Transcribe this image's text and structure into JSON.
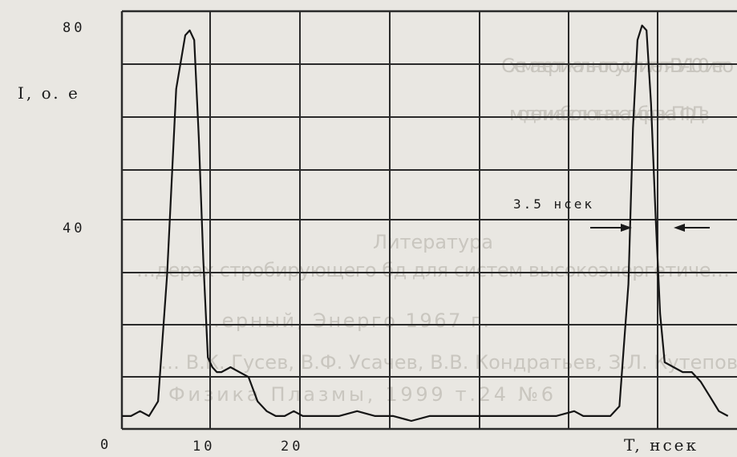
{
  "chart_data": {
    "type": "line",
    "ylabel": "I, o. e",
    "xlabel": "T, нсек",
    "x_ticks": [
      "0",
      "10",
      "20"
    ],
    "y_ticks": [
      "80",
      "40"
    ],
    "xlim": [
      0,
      68
    ],
    "ylim": [
      0,
      80
    ],
    "grid": true,
    "annotation": "3.5 нсек",
    "series": [
      {
        "x": [
          0,
          1,
          2,
          3,
          4,
          5,
          6,
          7,
          7.5,
          8,
          8.5,
          9,
          9.5,
          10,
          10.5,
          11,
          12,
          13,
          14,
          15,
          16,
          17,
          18,
          19,
          20,
          22,
          24,
          26,
          28,
          30,
          32,
          34,
          36,
          38,
          40,
          42,
          44,
          46,
          48,
          50,
          51,
          52,
          53,
          54,
          55,
          56,
          56.5,
          57,
          57.5,
          58,
          58.5,
          59,
          59.5,
          60,
          61,
          62,
          63,
          64,
          65,
          66,
          67
        ],
        "values": [
          1,
          1,
          2,
          1,
          4,
          30,
          68,
          79,
          80,
          78,
          58,
          33,
          13,
          11,
          10,
          10,
          11,
          10,
          9,
          4,
          2,
          1,
          1,
          2,
          1,
          1,
          1,
          2,
          1,
          1,
          0,
          1,
          1,
          1,
          1,
          1,
          1,
          1,
          1,
          2,
          1,
          1,
          1,
          1,
          3,
          28,
          60,
          78,
          81,
          80,
          65,
          42,
          22,
          12,
          11,
          10,
          10,
          8,
          5,
          2,
          1
        ]
      }
    ]
  },
  "background_text": [
    "Схема вертикального усилителя ВУ-100 и его",
    "модели и абсолютная калибровка ПФД в",
    "Литература",
    "…дерах стробирующего бд для систем высокоэнергетиче…",
    "…ерный, Энерго 1967 г.",
    "… В.К. Гусев, В.Ф. Усачев, В.В. Кондратьев, З.Л. Кутепов",
    "Физика Плазмы, 1999 т.24 №6"
  ]
}
